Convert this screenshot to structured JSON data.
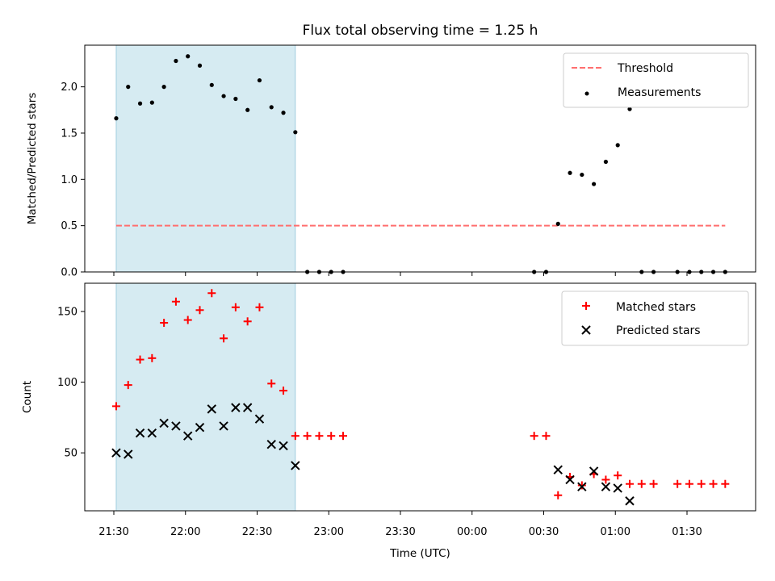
{
  "chart_data": [
    {
      "type": "scatter",
      "title": "Flux total observing time = 1.25 h",
      "ylabel": "Matched/Predicted stars",
      "xlabel": "",
      "ylim": [
        0,
        2.45
      ],
      "yticks": [
        "0.0",
        "0.5",
        "1.0",
        "1.5",
        "2.0"
      ],
      "yticks_values": [
        0,
        0.5,
        1.0,
        1.5,
        2.0
      ],
      "legend_position": "top-right",
      "shaded_region": {
        "start": "21:31",
        "end": "22:46",
        "color": "#add8e6"
      },
      "series": [
        {
          "name": "Threshold",
          "style": "dashed-line",
          "color": "#ff6f6f",
          "x": [
            "21:31",
            "01:46"
          ],
          "y": [
            0.5,
            0.5
          ]
        },
        {
          "name": "Measurements",
          "style": "dot",
          "color": "#000000",
          "x": [
            "21:31",
            "21:36",
            "21:41",
            "21:46",
            "21:51",
            "21:56",
            "22:01",
            "22:06",
            "22:11",
            "22:16",
            "22:21",
            "22:26",
            "22:31",
            "22:36",
            "22:41",
            "22:46",
            "22:51",
            "22:56",
            "23:01",
            "23:06",
            "00:26",
            "00:31",
            "00:36",
            "00:41",
            "00:46",
            "00:51",
            "00:56",
            "01:01",
            "01:06",
            "01:11",
            "01:16",
            "01:26",
            "01:31",
            "01:36",
            "01:41",
            "01:46"
          ],
          "y": [
            1.66,
            2.0,
            1.82,
            1.83,
            2.0,
            2.28,
            2.33,
            2.23,
            2.02,
            1.9,
            1.87,
            1.75,
            2.07,
            1.78,
            1.72,
            1.51,
            0,
            0,
            0,
            0,
            0,
            0,
            0.52,
            1.07,
            1.05,
            0.95,
            1.19,
            1.37,
            1.76,
            0,
            0,
            0,
            0,
            0,
            0,
            0
          ]
        }
      ]
    },
    {
      "type": "scatter",
      "xlabel": "Time (UTC)",
      "ylabel": "Count",
      "ylim": [
        9,
        170
      ],
      "yticks": [
        "50",
        "100",
        "150"
      ],
      "yticks_values": [
        50,
        100,
        150
      ],
      "xticks": [
        "21:30",
        "22:00",
        "22:30",
        "23:00",
        "23:30",
        "00:00",
        "00:30",
        "01:00",
        "01:30"
      ],
      "legend_position": "top-right",
      "shaded_region": {
        "start": "21:31",
        "end": "22:46",
        "color": "#add8e6"
      },
      "series": [
        {
          "name": "Matched stars",
          "marker": "plus",
          "color": "#ff0000",
          "x": [
            "21:31",
            "21:36",
            "21:41",
            "21:46",
            "21:51",
            "21:56",
            "22:01",
            "22:06",
            "22:11",
            "22:16",
            "22:21",
            "22:26",
            "22:31",
            "22:36",
            "22:41",
            "22:46",
            "22:51",
            "22:56",
            "23:01",
            "23:06",
            "00:26",
            "00:31",
            "00:36",
            "00:41",
            "00:46",
            "00:51",
            "00:56",
            "01:01",
            "01:06",
            "01:11",
            "01:16",
            "01:26",
            "01:31",
            "01:36",
            "01:41",
            "01:46"
          ],
          "y": [
            83,
            98,
            116,
            117,
            142,
            157,
            144,
            151,
            163,
            131,
            153,
            143,
            153,
            99,
            94,
            62,
            62,
            62,
            62,
            62,
            62,
            62,
            20,
            33,
            27,
            35,
            31,
            34,
            28,
            28,
            28,
            28,
            28,
            28,
            28,
            28
          ]
        },
        {
          "name": "Predicted stars",
          "marker": "x",
          "color": "#000000",
          "x": [
            "21:31",
            "21:36",
            "21:41",
            "21:46",
            "21:51",
            "21:56",
            "22:01",
            "22:06",
            "22:11",
            "22:16",
            "22:21",
            "22:26",
            "22:31",
            "22:36",
            "22:41",
            "22:46",
            "00:36",
            "00:41",
            "00:46",
            "00:51",
            "00:56",
            "01:01",
            "01:06"
          ],
          "y": [
            50,
            49,
            64,
            64,
            71,
            69,
            62,
            68,
            81,
            69,
            82,
            82,
            74,
            56,
            55,
            41,
            38,
            31,
            26,
            37,
            26,
            25,
            16
          ]
        }
      ]
    }
  ]
}
